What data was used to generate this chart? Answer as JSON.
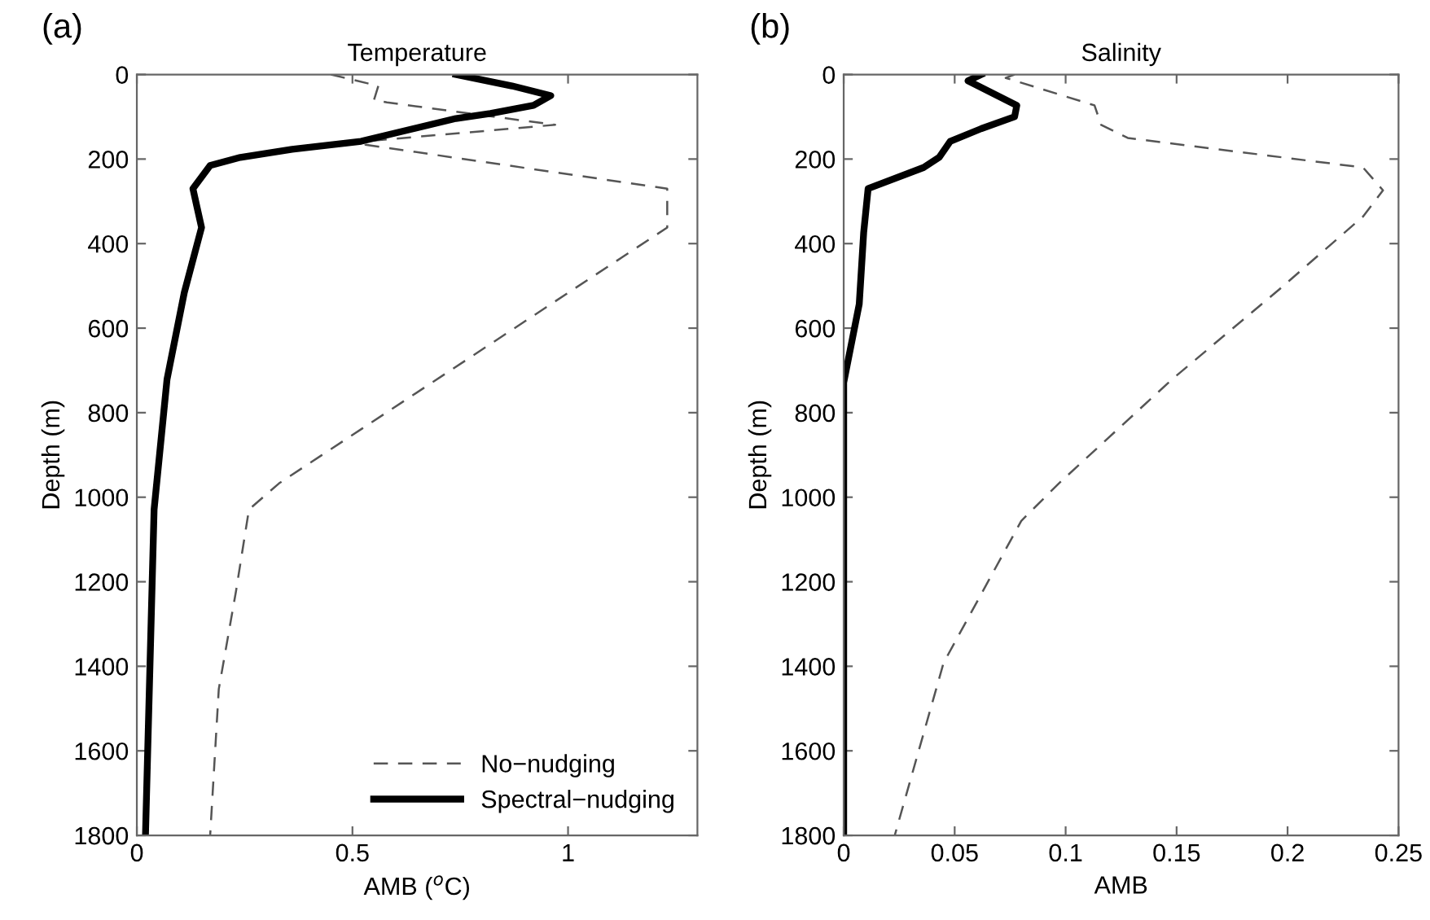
{
  "chart_data": [
    {
      "type": "line",
      "title": "Temperature",
      "xlabel": "AMB ($^{o}$C)",
      "ylabel": "Depth (m)",
      "annotations": [
        "(a)"
      ],
      "xlim": [
        0,
        1.3
      ],
      "xticks": [
        0,
        0.5,
        1
      ],
      "ylim": [
        1800,
        0
      ],
      "yticks": [
        0,
        200,
        400,
        600,
        800,
        1000,
        1200,
        1400,
        1600,
        1800
      ],
      "grid": false,
      "legend": "bottom right",
      "orientation": "horizontal",
      "series": [
        {
          "name": "No−nudging",
          "color": "#555555",
          "line_style": "dashed",
          "x": [
            0,
            27,
            60,
            66,
            119,
            158,
            166,
            270,
            362,
            967,
            1029,
            1222,
            1454,
            1800
          ],
          "values": [
            0.45,
            0.56,
            0.55,
            0.58,
            0.97,
            0.53,
            0.53,
            1.23,
            1.23,
            0.33,
            0.26,
            0.23,
            0.19,
            0.17
          ]
        },
        {
          "name": "Spectral−nudging",
          "color": "#000000",
          "line_style": "solid",
          "x": [
            0,
            27,
            50,
            73,
            92,
            104,
            131,
            158,
            177,
            196,
            215,
            270,
            362,
            516,
            721,
            1029,
            1800
          ],
          "values": [
            0.74,
            0.87,
            0.96,
            0.92,
            0.82,
            0.74,
            0.63,
            0.52,
            0.36,
            0.24,
            0.17,
            0.13,
            0.15,
            0.11,
            0.07,
            0.04,
            0.02
          ]
        }
      ]
    },
    {
      "type": "line",
      "title": "Salinity",
      "xlabel": "AMB",
      "ylabel": "Depth (m)",
      "annotations": [
        "(b)"
      ],
      "xlim": [
        0,
        0.25
      ],
      "xticks": [
        0,
        0.05,
        0.1,
        0.15,
        0.2,
        0.25
      ],
      "ylim": [
        1800,
        0
      ],
      "yticks": [
        0,
        200,
        400,
        600,
        800,
        1000,
        1200,
        1400,
        1600,
        1800
      ],
      "grid": false,
      "orientation": "horizontal",
      "series": [
        {
          "color": "#555555",
          "line_style": "dashed",
          "x": [
            0,
            8,
            73,
            119,
            150,
            220,
            274,
            336,
            505,
            721,
            967,
            1056,
            1392,
            1800
          ],
          "values": [
            0.077,
            0.073,
            0.113,
            0.116,
            0.128,
            0.234,
            0.243,
            0.234,
            0.197,
            0.148,
            0.097,
            0.08,
            0.045,
            0.023
          ]
        },
        {
          "color": "#000000",
          "line_style": "solid",
          "x": [
            0,
            15,
            73,
            100,
            128,
            158,
            196,
            220,
            270,
            374,
            543,
            729,
            1800
          ],
          "values": [
            0.062,
            0.056,
            0.078,
            0.077,
            0.062,
            0.048,
            0.043,
            0.036,
            0.011,
            0.009,
            0.007,
            0,
            0
          ]
        }
      ]
    }
  ]
}
